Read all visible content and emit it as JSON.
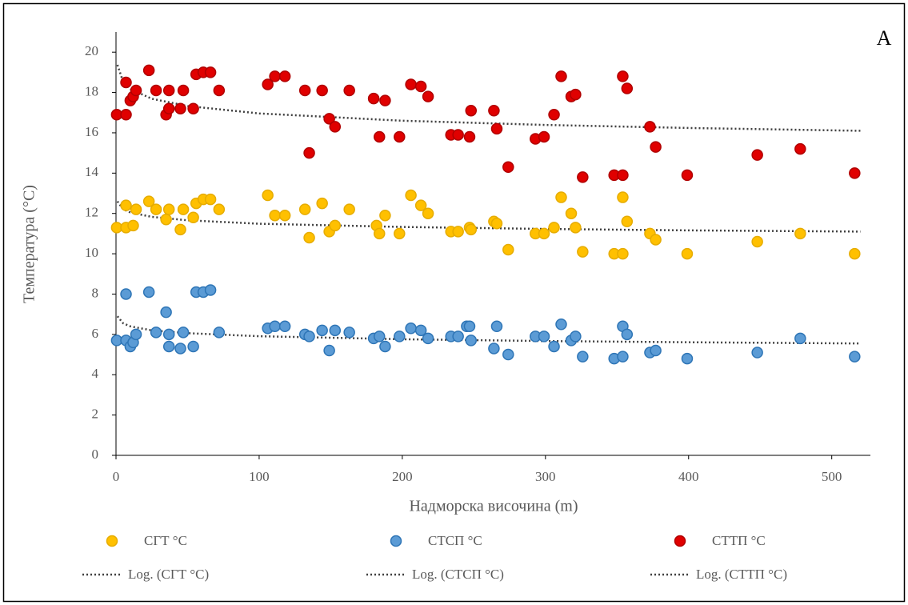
{
  "chart_data": {
    "type": "scatter",
    "annotation": "A",
    "xlabel": "Надморска височина (m)",
    "ylabel": "Температура  (°C)",
    "xlim": [
      0,
      527
    ],
    "xticks": [
      0,
      100,
      200,
      300,
      400,
      500
    ],
    "ylim": [
      0,
      21
    ],
    "yticks": [
      0,
      2,
      4,
      6,
      8,
      10,
      12,
      14,
      16,
      18,
      20
    ],
    "series": [
      {
        "name": "СГТ °C",
        "color": "#ffc000",
        "edgecolor": "#e6ac00",
        "x": [
          0.5,
          7,
          7,
          12,
          14,
          23,
          28,
          35,
          37,
          45,
          47,
          54,
          56,
          61,
          66,
          72,
          106,
          111,
          118,
          132,
          135,
          144,
          149,
          153,
          163,
          182,
          184,
          188,
          198,
          206,
          213,
          218,
          234,
          239,
          247,
          248,
          264,
          266,
          274,
          293,
          299,
          306,
          311,
          318,
          321,
          326,
          348,
          354,
          354,
          357,
          373,
          377,
          399,
          448,
          478,
          516
        ],
        "values": [
          11.3,
          12.4,
          11.3,
          11.4,
          12.2,
          12.6,
          12.2,
          11.7,
          12.2,
          11.2,
          12.2,
          11.8,
          12.5,
          12.7,
          12.7,
          12.2,
          12.9,
          11.9,
          11.9,
          12.2,
          10.8,
          12.5,
          11.1,
          11.4,
          12.2,
          11.4,
          11.0,
          11.9,
          11.0,
          12.9,
          12.4,
          12.0,
          11.1,
          11.1,
          11.3,
          11.2,
          11.6,
          11.5,
          10.2,
          11.0,
          11.0,
          11.3,
          12.8,
          12.0,
          11.3,
          10.1,
          10.0,
          10.0,
          12.8,
          11.6,
          11.0,
          10.7,
          10.0,
          10.6,
          11.0,
          10.0
        ]
      },
      {
        "name": "СТСП °C",
        "color": "#5b9bd5",
        "edgecolor": "#2e75b6",
        "x": [
          0.5,
          7,
          7,
          10,
          12,
          14,
          23,
          28,
          35,
          37,
          37,
          45,
          47,
          54,
          56,
          61,
          66,
          72,
          106,
          111,
          118,
          132,
          135,
          144,
          149,
          153,
          163,
          180,
          184,
          188,
          198,
          206,
          213,
          218,
          234,
          239,
          245,
          247,
          248,
          264,
          266,
          274,
          293,
          299,
          306,
          311,
          318,
          321,
          326,
          348,
          354,
          354,
          357,
          373,
          377,
          399,
          448,
          478,
          516
        ],
        "values": [
          5.7,
          5.7,
          8.0,
          5.4,
          5.6,
          6.0,
          8.1,
          6.1,
          7.1,
          6.0,
          5.4,
          5.3,
          6.1,
          5.4,
          8.1,
          8.1,
          8.2,
          6.1,
          6.3,
          6.4,
          6.4,
          6.0,
          5.9,
          6.2,
          5.2,
          6.2,
          6.1,
          5.8,
          5.9,
          5.4,
          5.9,
          6.3,
          6.2,
          5.8,
          5.9,
          5.9,
          6.4,
          6.4,
          5.7,
          5.3,
          6.4,
          5.0,
          5.9,
          5.9,
          5.4,
          6.5,
          5.7,
          5.9,
          4.9,
          4.8,
          4.9,
          6.4,
          6.0,
          5.1,
          5.2,
          4.8,
          5.1,
          5.8,
          4.9
        ]
      },
      {
        "name": "СТТП °C",
        "color": "#e00000",
        "edgecolor": "#b00000",
        "x": [
          0.5,
          7,
          7,
          10,
          12,
          14,
          23,
          28,
          35,
          37,
          37,
          45,
          47,
          54,
          56,
          61,
          66,
          72,
          106,
          111,
          118,
          132,
          135,
          144,
          149,
          153,
          163,
          180,
          184,
          188,
          198,
          206,
          213,
          218,
          234,
          239,
          247,
          248,
          264,
          266,
          274,
          293,
          299,
          306,
          311,
          318,
          321,
          326,
          348,
          354,
          354,
          357,
          373,
          377,
          399,
          448,
          478,
          516
        ],
        "values": [
          16.9,
          16.9,
          18.5,
          17.6,
          17.8,
          18.1,
          19.1,
          18.1,
          16.9,
          17.2,
          18.1,
          17.2,
          18.1,
          17.2,
          18.9,
          19.0,
          19.0,
          18.1,
          18.4,
          18.8,
          18.8,
          18.1,
          15.0,
          18.1,
          16.7,
          16.3,
          18.1,
          17.7,
          15.8,
          17.6,
          15.8,
          18.4,
          18.3,
          17.8,
          15.9,
          15.9,
          15.8,
          17.1,
          17.1,
          16.2,
          14.3,
          15.7,
          15.8,
          16.9,
          18.8,
          17.8,
          17.9,
          13.8,
          13.9,
          13.9,
          18.8,
          18.2,
          16.3,
          15.3,
          13.9,
          14.9,
          15.2,
          14.0
        ]
      }
    ],
    "trendlines": [
      {
        "name": "Log. (СГТ °C)",
        "color": "#404040",
        "x": [
          1,
          5,
          10,
          25,
          50,
          100,
          200,
          300,
          400,
          520
        ],
        "values": [
          12.6,
          12.21,
          12.05,
          11.83,
          11.66,
          11.49,
          11.33,
          11.23,
          11.16,
          11.1
        ]
      },
      {
        "name": "Log. (СТСП °C)",
        "color": "#404040",
        "x": [
          1,
          5,
          10,
          25,
          50,
          100,
          200,
          300,
          400,
          520
        ],
        "values": [
          6.9,
          6.55,
          6.4,
          6.2,
          6.06,
          5.91,
          5.76,
          5.67,
          5.61,
          5.55
        ]
      },
      {
        "name": "Log. (СТТП °C)",
        "color": "#404040",
        "x": [
          1,
          5,
          10,
          25,
          50,
          100,
          200,
          300,
          400,
          520
        ],
        "values": [
          19.37,
          18.53,
          18.17,
          17.69,
          17.33,
          16.96,
          16.6,
          16.39,
          16.24,
          16.1
        ]
      }
    ]
  }
}
